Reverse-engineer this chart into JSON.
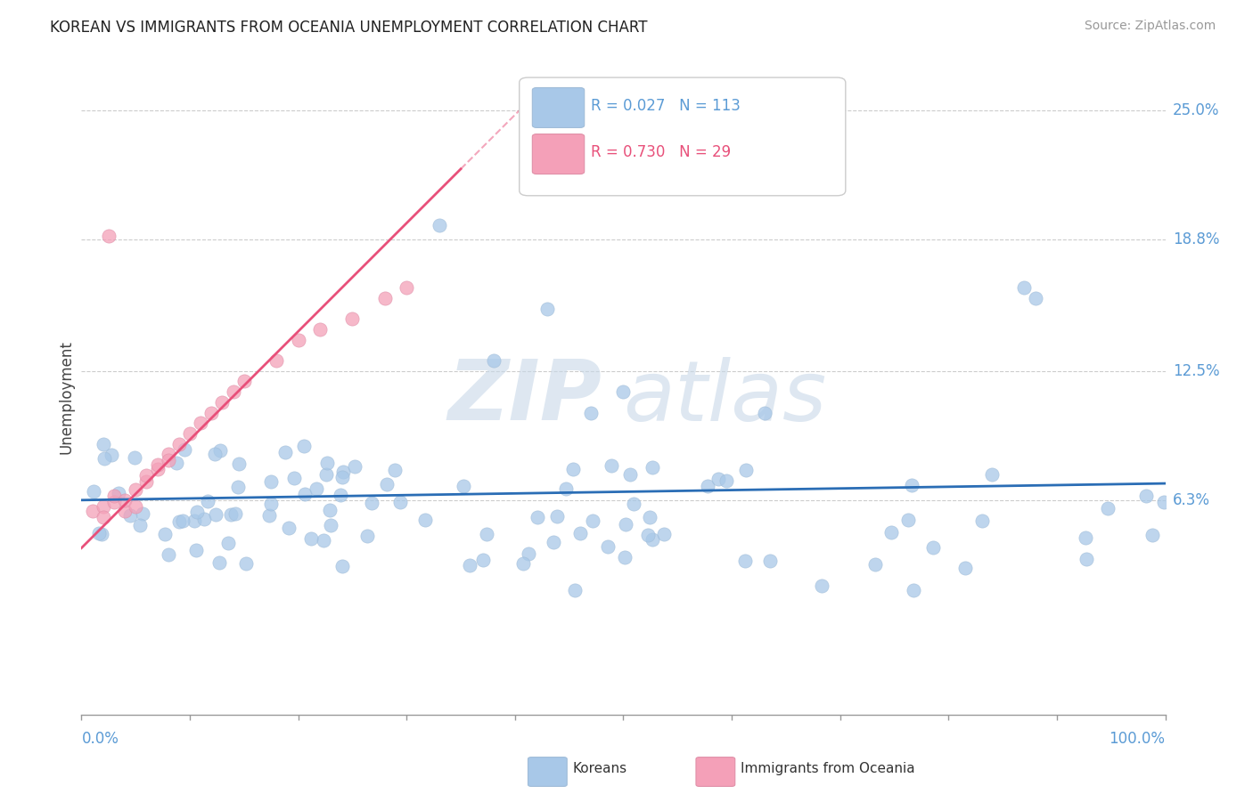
{
  "title": "KOREAN VS IMMIGRANTS FROM OCEANIA UNEMPLOYMENT CORRELATION CHART",
  "source_text": "Source: ZipAtlas.com",
  "ylabel": "Unemployment",
  "right_ytick_labels": [
    "6.3%",
    "12.5%",
    "18.8%",
    "25.0%"
  ],
  "right_ytick_values": [
    0.063,
    0.125,
    0.188,
    0.25
  ],
  "watermark_zip": "ZIP",
  "watermark_atlas": "atlas",
  "background_color": "#ffffff",
  "blue_scatter_color": "#a8c8e8",
  "pink_scatter_color": "#f4a0b8",
  "blue_line_color": "#2a6db5",
  "pink_line_color": "#e8507a",
  "xlim": [
    0,
    1
  ],
  "ylim": [
    -0.04,
    0.265
  ]
}
